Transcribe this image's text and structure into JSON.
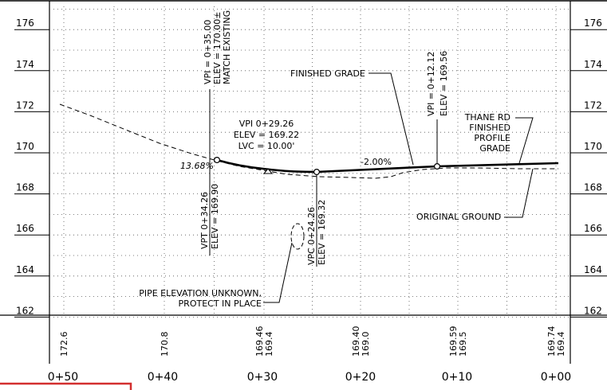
{
  "profile": {
    "elevation_axis": {
      "left_labels": [
        "176",
        "174",
        "172",
        "170",
        "168",
        "166",
        "164",
        "162"
      ],
      "right_labels": [
        "176",
        "174",
        "172",
        "170",
        "168",
        "166",
        "164",
        "162"
      ],
      "range": [
        162,
        177
      ],
      "major_step": 2
    },
    "station_labels": [
      "0+50",
      "0+40",
      "0+30",
      "0+20",
      "0+10",
      "0+00"
    ],
    "elevation_table": [
      {
        "station": "0+50",
        "values": [
          "172.6"
        ]
      },
      {
        "station": "0+40",
        "values": [
          "170.8"
        ]
      },
      {
        "station": "0+30",
        "values": [
          "169.46",
          "169.4"
        ]
      },
      {
        "station": "0+20",
        "values": [
          "169.40",
          "169.0"
        ]
      },
      {
        "station": "0+10",
        "values": [
          "169.59",
          "169.5"
        ]
      },
      {
        "station": "0+00",
        "values": [
          "169.74",
          "169.4"
        ]
      }
    ],
    "annotations": {
      "vpi_top": [
        "VPI = 0+35.00",
        "ELEV = 170.00±",
        "MATCH EXISTING"
      ],
      "vpi_right": [
        "VPI = 0+12.12",
        "ELEV = 169.56"
      ],
      "finished_grade": "FINISHED GRADE",
      "curve_info": [
        "VPI 0+29.26",
        "ELEV = 169.22",
        "LVC = 10.00'"
      ],
      "slope_left": "13.68%",
      "slope_right": "-2.00%",
      "thane_rd": [
        "THANE RD",
        "FINISHED",
        "PROFILE",
        "GRADE"
      ],
      "vpt": [
        "VPT 0+34.26",
        "ELEV = 169.90"
      ],
      "vpc": [
        "VPC 0+24.26",
        "ELEV = 169.32"
      ],
      "original_ground": "ORIGINAL GROUND",
      "pipe": [
        "PIPE ELEVATION UNKNOWN,",
        "PROTECT IN PLACE"
      ]
    },
    "colors": {
      "line": "#000000",
      "frame": "#000000",
      "highlight": "#d32f2f"
    }
  }
}
